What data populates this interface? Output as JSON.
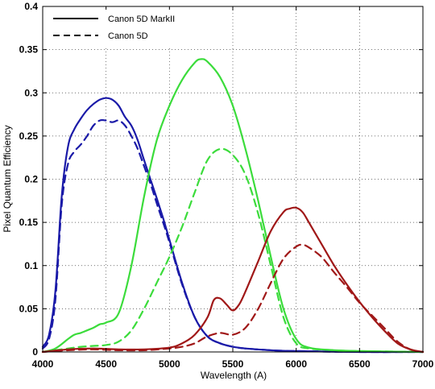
{
  "chart_data": {
    "type": "line",
    "xlabel": "Wavelength (A)",
    "ylabel": "Pixel Quantum Efficiency",
    "xlim": [
      4000,
      7000
    ],
    "ylim": [
      0,
      0.4
    ],
    "xticks": [
      4000,
      4500,
      5000,
      5500,
      6000,
      6500,
      7000
    ],
    "yticks": [
      0,
      0.05,
      0.1,
      0.15,
      0.2,
      0.25,
      0.3,
      0.35,
      0.4
    ],
    "xtick_labels": [
      "4000",
      "4500",
      "5000",
      "5500",
      "6000",
      "6500",
      "7000"
    ],
    "ytick_labels": [
      "0",
      "0.05",
      "0.1",
      "0.15",
      "0.2",
      "0.25",
      "0.3",
      "0.35",
      "0.4"
    ],
    "grid": true,
    "legend_position": "top-left",
    "legend": [
      {
        "label": "Canon 5D MarkII",
        "style": "solid"
      },
      {
        "label": "Canon 5D",
        "style": "dashed"
      }
    ],
    "colors": {
      "blue": "#1a1aa8",
      "green": "#3bdc3b",
      "red": "#a01818"
    },
    "series": [
      {
        "color": "blue",
        "style": "solid",
        "x": [
          4000,
          4050,
          4100,
          4150,
          4200,
          4250,
          4300,
          4350,
          4400,
          4450,
          4500,
          4550,
          4600,
          4650,
          4700,
          4750,
          4800,
          4850,
          4900,
          4950,
          5000,
          5100,
          5200,
          5300,
          5400,
          5500,
          5600,
          5800,
          6000,
          6500,
          7000
        ],
        "y": [
          0.006,
          0.02,
          0.07,
          0.18,
          0.238,
          0.258,
          0.27,
          0.28,
          0.287,
          0.292,
          0.294,
          0.292,
          0.285,
          0.272,
          0.262,
          0.245,
          0.222,
          0.2,
          0.178,
          0.155,
          0.13,
          0.08,
          0.04,
          0.018,
          0.01,
          0.006,
          0.004,
          0.002,
          0.001,
          0.0,
          0.0
        ]
      },
      {
        "color": "blue",
        "style": "dashed",
        "x": [
          4000,
          4050,
          4100,
          4150,
          4200,
          4250,
          4300,
          4350,
          4400,
          4450,
          4500,
          4550,
          4600,
          4650,
          4700,
          4750,
          4800,
          4850,
          4900,
          4950,
          5000,
          5100,
          5200,
          5300,
          5400,
          5500,
          5600,
          5800,
          6000,
          6500,
          7000
        ],
        "y": [
          0.004,
          0.015,
          0.06,
          0.17,
          0.218,
          0.232,
          0.24,
          0.25,
          0.262,
          0.268,
          0.268,
          0.266,
          0.268,
          0.262,
          0.25,
          0.235,
          0.215,
          0.195,
          0.172,
          0.15,
          0.127,
          0.078,
          0.04,
          0.018,
          0.01,
          0.006,
          0.004,
          0.002,
          0.001,
          0.0,
          0.0
        ]
      },
      {
        "color": "green",
        "style": "solid",
        "x": [
          4000,
          4100,
          4200,
          4250,
          4300,
          4350,
          4400,
          4450,
          4500,
          4600,
          4700,
          4800,
          4900,
          5000,
          5100,
          5200,
          5250,
          5300,
          5400,
          5500,
          5600,
          5700,
          5800,
          5900,
          6000,
          6100,
          6300,
          6500,
          7000
        ],
        "y": [
          0.0,
          0.004,
          0.015,
          0.02,
          0.022,
          0.025,
          0.028,
          0.032,
          0.034,
          0.045,
          0.1,
          0.18,
          0.245,
          0.285,
          0.315,
          0.335,
          0.339,
          0.336,
          0.318,
          0.285,
          0.235,
          0.175,
          0.11,
          0.05,
          0.015,
          0.005,
          0.002,
          0.001,
          0.0
        ]
      },
      {
        "color": "green",
        "style": "dashed",
        "x": [
          4000,
          4100,
          4200,
          4300,
          4400,
          4500,
          4600,
          4700,
          4800,
          4900,
          5000,
          5100,
          5200,
          5300,
          5400,
          5500,
          5600,
          5700,
          5800,
          5900,
          6000,
          6100,
          6300,
          6500,
          7000
        ],
        "y": [
          0.0,
          0.002,
          0.004,
          0.006,
          0.007,
          0.008,
          0.012,
          0.025,
          0.05,
          0.08,
          0.11,
          0.145,
          0.185,
          0.222,
          0.235,
          0.228,
          0.205,
          0.16,
          0.1,
          0.04,
          0.01,
          0.004,
          0.002,
          0.001,
          0.0
        ]
      },
      {
        "color": "red",
        "style": "solid",
        "x": [
          4000,
          4200,
          4400,
          4600,
          4800,
          5000,
          5100,
          5200,
          5300,
          5350,
          5400,
          5450,
          5500,
          5550,
          5600,
          5700,
          5800,
          5900,
          5950,
          6000,
          6050,
          6100,
          6200,
          6300,
          6400,
          6500,
          6600,
          6700,
          6800,
          6900,
          7000
        ],
        "y": [
          0.0,
          0.003,
          0.004,
          0.003,
          0.003,
          0.005,
          0.01,
          0.02,
          0.04,
          0.06,
          0.062,
          0.055,
          0.048,
          0.055,
          0.07,
          0.105,
          0.14,
          0.162,
          0.166,
          0.167,
          0.162,
          0.15,
          0.125,
          0.1,
          0.078,
          0.058,
          0.04,
          0.024,
          0.01,
          0.003,
          0.0
        ]
      },
      {
        "color": "red",
        "style": "dashed",
        "x": [
          4000,
          4200,
          4400,
          4600,
          4800,
          5000,
          5100,
          5200,
          5300,
          5400,
          5500,
          5600,
          5700,
          5800,
          5900,
          6000,
          6050,
          6100,
          6200,
          6300,
          6400,
          6500,
          6600,
          6700,
          6800,
          6900,
          7000
        ],
        "y": [
          0.0,
          0.002,
          0.003,
          0.002,
          0.002,
          0.004,
          0.006,
          0.01,
          0.018,
          0.022,
          0.02,
          0.028,
          0.05,
          0.08,
          0.108,
          0.122,
          0.124,
          0.121,
          0.11,
          0.092,
          0.075,
          0.057,
          0.042,
          0.027,
          0.012,
          0.003,
          0.0
        ]
      }
    ]
  }
}
